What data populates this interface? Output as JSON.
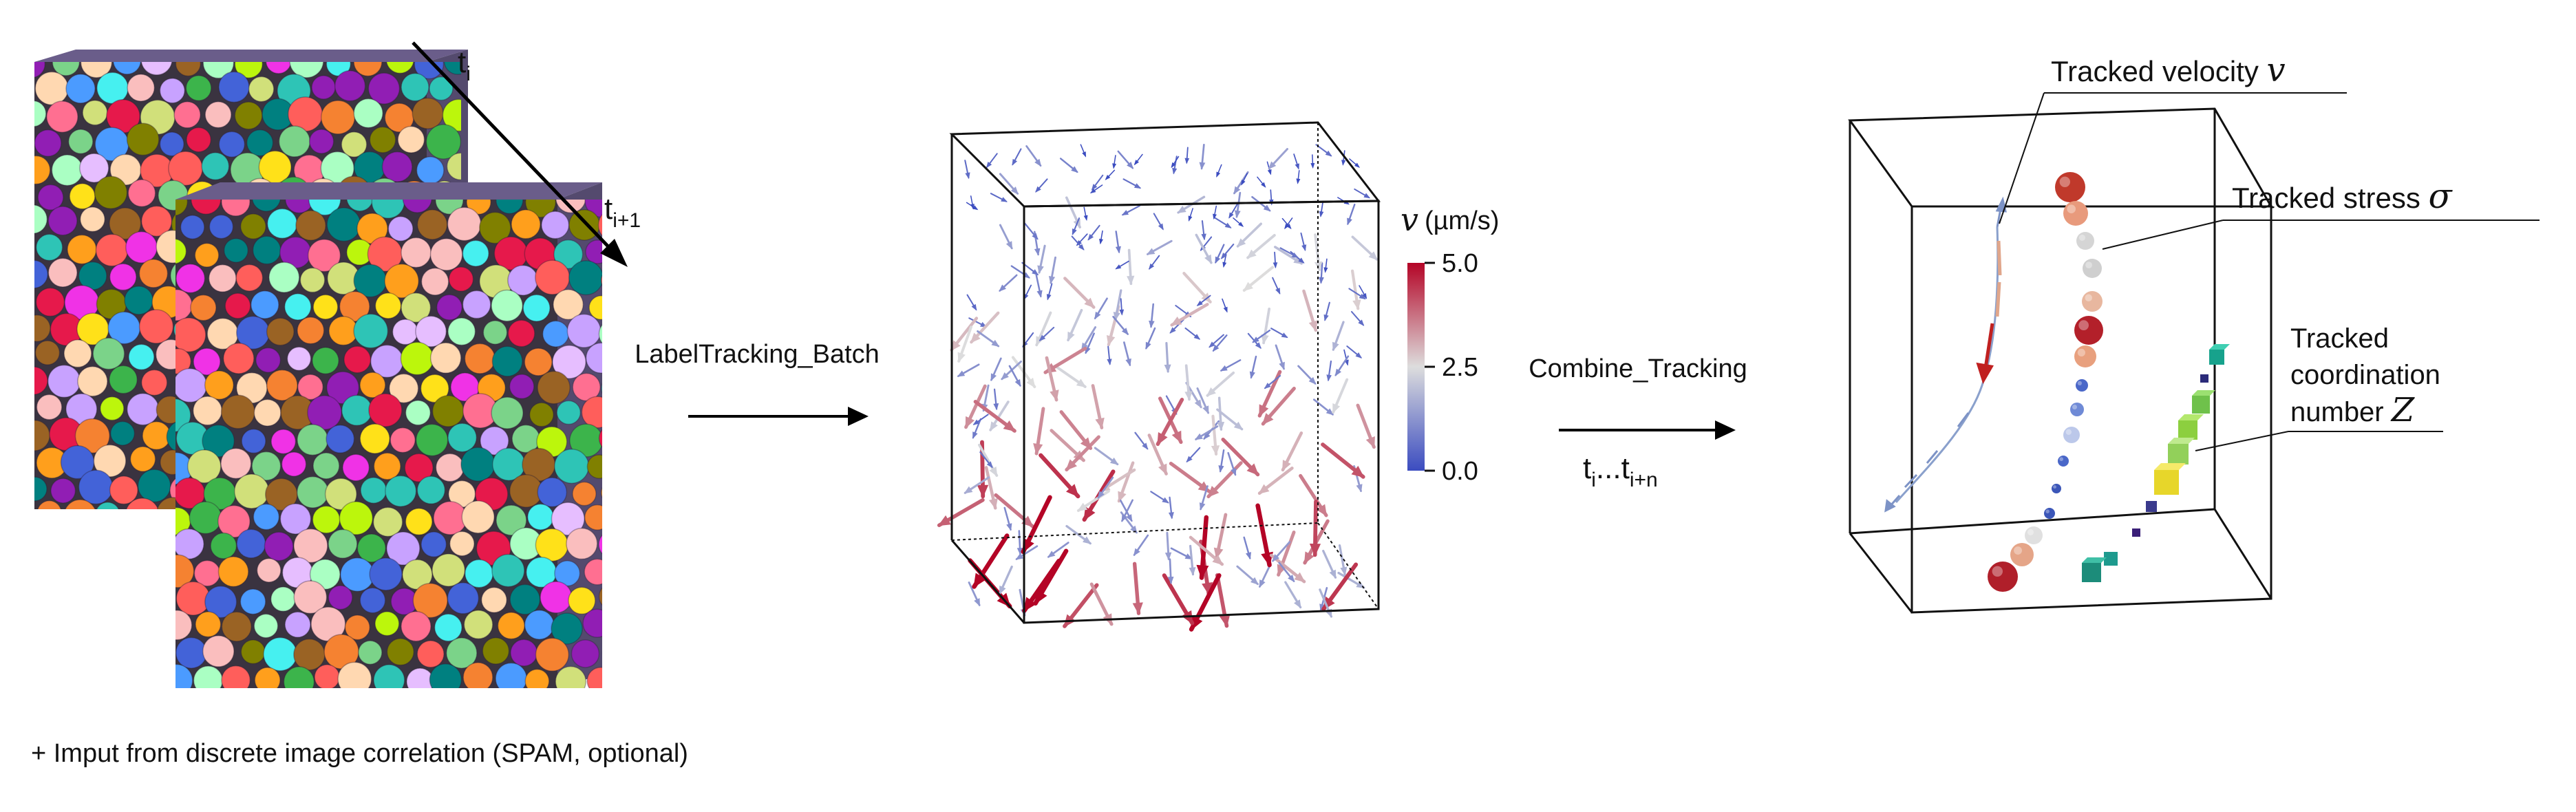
{
  "panel1": {
    "time_label_a": "t",
    "time_sub_a": "i",
    "time_label_b": "t",
    "time_sub_b": "i+1"
  },
  "step1": {
    "label": "LabelTracking_Batch"
  },
  "panel2": {
    "colorbar": {
      "symbol": "v",
      "unit": "(µm/s)",
      "ticks": [
        "5.0",
        "2.5",
        "0.0"
      ],
      "range": [
        0.0,
        5.0
      ],
      "colors": {
        "low": "#3b4cc0",
        "mid": "#dddddd",
        "high": "#b40426"
      }
    }
  },
  "step2": {
    "label": "Combine_Tracking",
    "range_t1": "t",
    "range_sub1": "i",
    "range_dots": "...",
    "range_t2": "t",
    "range_sub2": "i+n"
  },
  "panel3": {
    "velocity_label": "Tracked velocity",
    "velocity_symbol": "v",
    "stress_label": "Tracked stress",
    "stress_symbol": "σ",
    "coord_line1": "Tracked",
    "coord_line2": "coordination",
    "coord_line3": "number",
    "coord_symbol": "Z"
  },
  "footnote": "+ Imput from discrete image correlation (SPAM, optional)"
}
